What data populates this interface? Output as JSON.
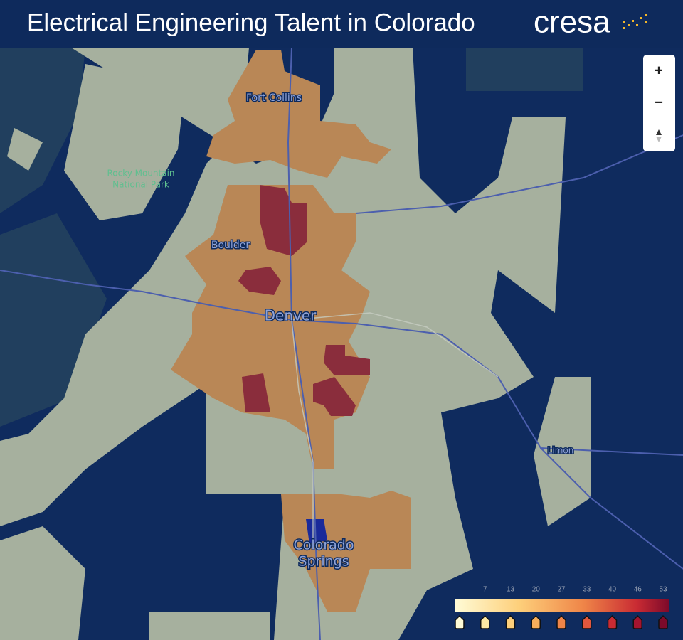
{
  "header": {
    "title": "Electrical Engineering Talent in Colorado",
    "logo": "cresa"
  },
  "places": {
    "fort_collins": "Fort Collins",
    "rocky_mountain": [
      "Rocky Mountain",
      "National Park"
    ],
    "boulder": "Boulder",
    "denver": "Denver",
    "limon": "Limon",
    "colorado_springs": [
      "Colorado",
      "Springs"
    ]
  },
  "zoom": {
    "zoom_in": "+",
    "zoom_out": "−"
  },
  "legend": {
    "ticks": [
      7,
      13,
      20,
      27,
      33,
      40,
      46,
      53
    ],
    "marker_colors": [
      "#fffbd6",
      "#fde9a4",
      "#fdcf7a",
      "#f7ae5b",
      "#ef8548",
      "#e2573d",
      "#c92b33",
      "#a3142f",
      "#7d0a2a"
    ]
  }
}
